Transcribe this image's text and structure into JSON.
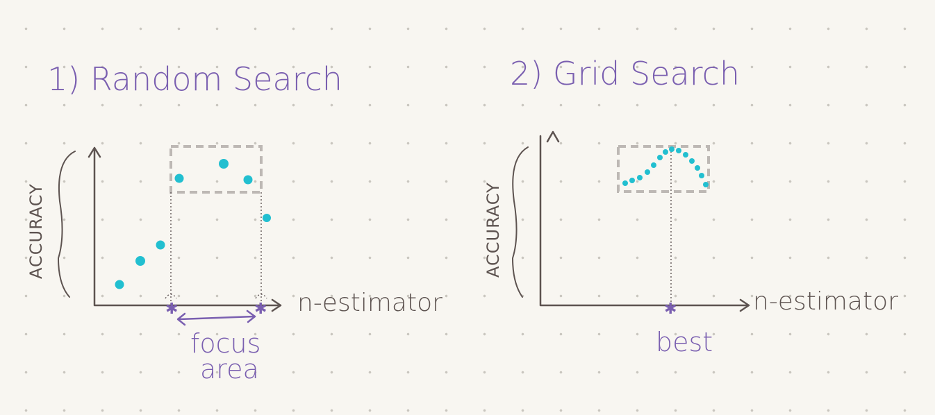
{
  "panels": [
    {
      "title": "1) Random Search",
      "ylabel": "ACCURACY",
      "xlabel": "n-estimator",
      "annotation_line1": "focus",
      "annotation_line2": "area"
    },
    {
      "title": "2) Grid Search",
      "ylabel": "ACCURACY",
      "xlabel": "n-estimator",
      "annotation": "best"
    }
  ],
  "colors": {
    "points": "#22bfd0",
    "accent": "#7a5fb0",
    "axes": "#5d5350",
    "box": "#bdb8b4"
  }
}
